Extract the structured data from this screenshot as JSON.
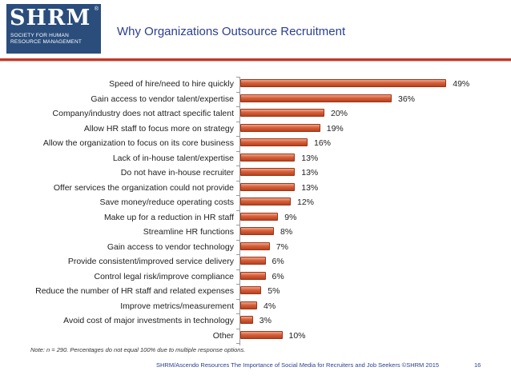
{
  "logo": {
    "word": "SHRM",
    "registered": "®",
    "subtitle_lines": [
      "SOCIETY FOR HUMAN",
      "RESOURCE MANAGEMENT"
    ]
  },
  "header": {
    "title": "Why Organizations Outsource Recruitment"
  },
  "colors": {
    "title": "#2a3f8f",
    "bar": "#d5603b",
    "rule": "#c0392b",
    "logo": "#2a4d7c"
  },
  "chart_data": {
    "type": "bar",
    "orientation": "horizontal",
    "title": "Why Organizations Outsource Recruitment",
    "xlabel": "",
    "ylabel": "",
    "xlim": [
      0,
      60
    ],
    "unit": "%",
    "categories": [
      "Speed of hire/need to hire quickly",
      "Gain access to vendor talent/expertise",
      "Company/industry does not attract specific talent",
      "Allow HR staff to focus more on strategy",
      "Allow the organization to focus on its core business",
      "Lack of in-house talent/expertise",
      "Do not have in-house recruiter",
      "Offer services the organization could not provide",
      "Save money/reduce operating costs",
      "Make up for a reduction in HR staff",
      "Streamline HR functions",
      "Gain access to vendor technology",
      "Provide consistent/improved service delivery",
      "Control legal risk/improve compliance",
      "Reduce the number of HR staff and related expenses",
      "Improve metrics/measurement",
      "Avoid cost of major investments in technology",
      "Other"
    ],
    "values": [
      49,
      36,
      20,
      19,
      16,
      13,
      13,
      13,
      12,
      9,
      8,
      7,
      6,
      6,
      5,
      4,
      3,
      10
    ],
    "labels": [
      "49%",
      "36%",
      "20%",
      "19%",
      "16%",
      "13%",
      "13%",
      "13%",
      "12%",
      "9%",
      "8%",
      "7%",
      "6%",
      "6%",
      "5%",
      "4%",
      "3%",
      "10%"
    ]
  },
  "note": "Note: n = 290. Percentages do not equal 100% due to multiple response options.",
  "footer": {
    "source": "SHRM/Ascendo Resources The Importance of Social Media for Recruiters and Job Seekers ©SHRM 2015",
    "page_number": "16"
  }
}
